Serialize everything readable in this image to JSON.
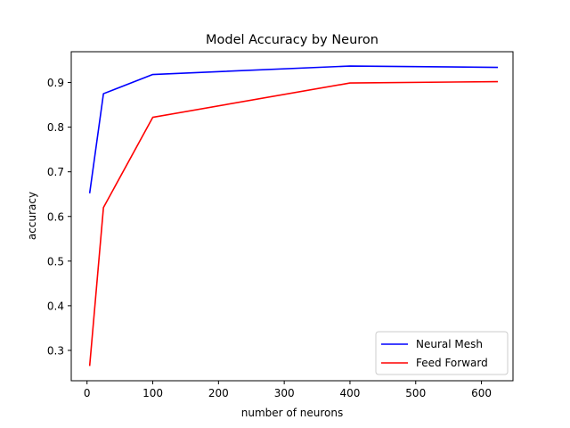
{
  "chart_data": {
    "type": "line",
    "title": "Model Accuracy by Neuron",
    "xlabel": "number of neurons",
    "ylabel": "accuracy",
    "xlim": [
      -24,
      648
    ],
    "ylim": [
      0.232,
      0.969
    ],
    "xticks": [
      0,
      100,
      200,
      300,
      400,
      500,
      600
    ],
    "yticks": [
      0.3,
      0.4,
      0.5,
      0.6,
      0.7,
      0.8,
      0.9
    ],
    "grid": false,
    "legend_position": "lower-right",
    "series": [
      {
        "name": "Neural Mesh",
        "color": "#0000ff",
        "x": [
          4,
          25,
          100,
          400,
          625
        ],
        "y": [
          0.652,
          0.875,
          0.918,
          0.937,
          0.934
        ]
      },
      {
        "name": "Feed Forward",
        "color": "#ff0000",
        "x": [
          4,
          25,
          100,
          400,
          625
        ],
        "y": [
          0.265,
          0.62,
          0.822,
          0.899,
          0.902
        ]
      }
    ]
  }
}
